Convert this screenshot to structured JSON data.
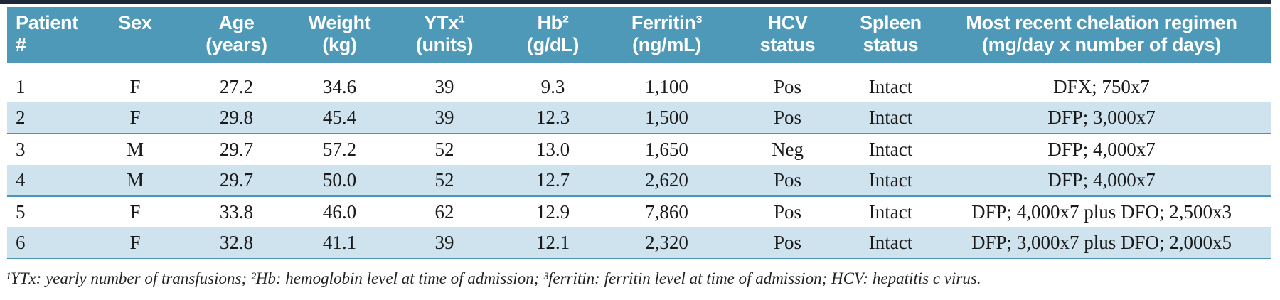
{
  "colors": {
    "header_bg": "#4f99b8",
    "row_alt_bg": "#cfe3ef",
    "separator": "#4a96b6",
    "top_bar": "#1d2735",
    "text": "#1a1a1a"
  },
  "table": {
    "columns": [
      {
        "id": "patient-number",
        "line1": "Patient",
        "line2": "#",
        "align": "left"
      },
      {
        "id": "sex",
        "line1": "Sex",
        "line2": "",
        "align": "center"
      },
      {
        "id": "age",
        "line1": "Age",
        "line2": "(years)",
        "align": "center"
      },
      {
        "id": "weight",
        "line1": "Weight",
        "line2": "(kg)",
        "align": "center"
      },
      {
        "id": "ytx",
        "line1": "YTx¹",
        "line2": "(units)",
        "align": "center"
      },
      {
        "id": "hb",
        "line1": "Hb²",
        "line2": "(g/dL)",
        "align": "center"
      },
      {
        "id": "ferritin",
        "line1": "Ferritin³",
        "line2": "(ng/mL)",
        "align": "center"
      },
      {
        "id": "hcv-status",
        "line1": "HCV",
        "line2": "status",
        "align": "center"
      },
      {
        "id": "spleen-status",
        "line1": "Spleen",
        "line2": "status",
        "align": "center"
      },
      {
        "id": "chelation-regimen",
        "line1": "Most recent chelation regimen",
        "line2": "(mg/day x number of days)",
        "align": "center"
      }
    ],
    "rows": [
      [
        "1",
        "F",
        "27.2",
        "34.6",
        "39",
        "9.3",
        "1,100",
        "Pos",
        "Intact",
        "DFX; 750x7"
      ],
      [
        "2",
        "F",
        "29.8",
        "45.4",
        "39",
        "12.3",
        "1,500",
        "Pos",
        "Intact",
        "DFP; 3,000x7"
      ],
      [
        "3",
        "M",
        "29.7",
        "57.2",
        "52",
        "13.0",
        "1,650",
        "Neg",
        "Intact",
        "DFP; 4,000x7"
      ],
      [
        "4",
        "M",
        "29.7",
        "50.0",
        "52",
        "12.7",
        "2,620",
        "Pos",
        "Intact",
        "DFP; 4,000x7"
      ],
      [
        "5",
        "F",
        "33.8",
        "46.0",
        "62",
        "12.9",
        "7,860",
        "Pos",
        "Intact",
        "DFP; 4,000x7 plus DFO; 2,500x3"
      ],
      [
        "6",
        "F",
        "32.8",
        "41.1",
        "39",
        "12.1",
        "2,320",
        "Pos",
        "Intact",
        "DFP; 3,000x7 plus DFO; 2,000x5"
      ]
    ],
    "footnote": "¹YTx: yearly number of transfusions; ²Hb: hemoglobin level at time of admission; ³ferritin: ferritin level at time of admission; HCV: hepatitis c virus."
  }
}
